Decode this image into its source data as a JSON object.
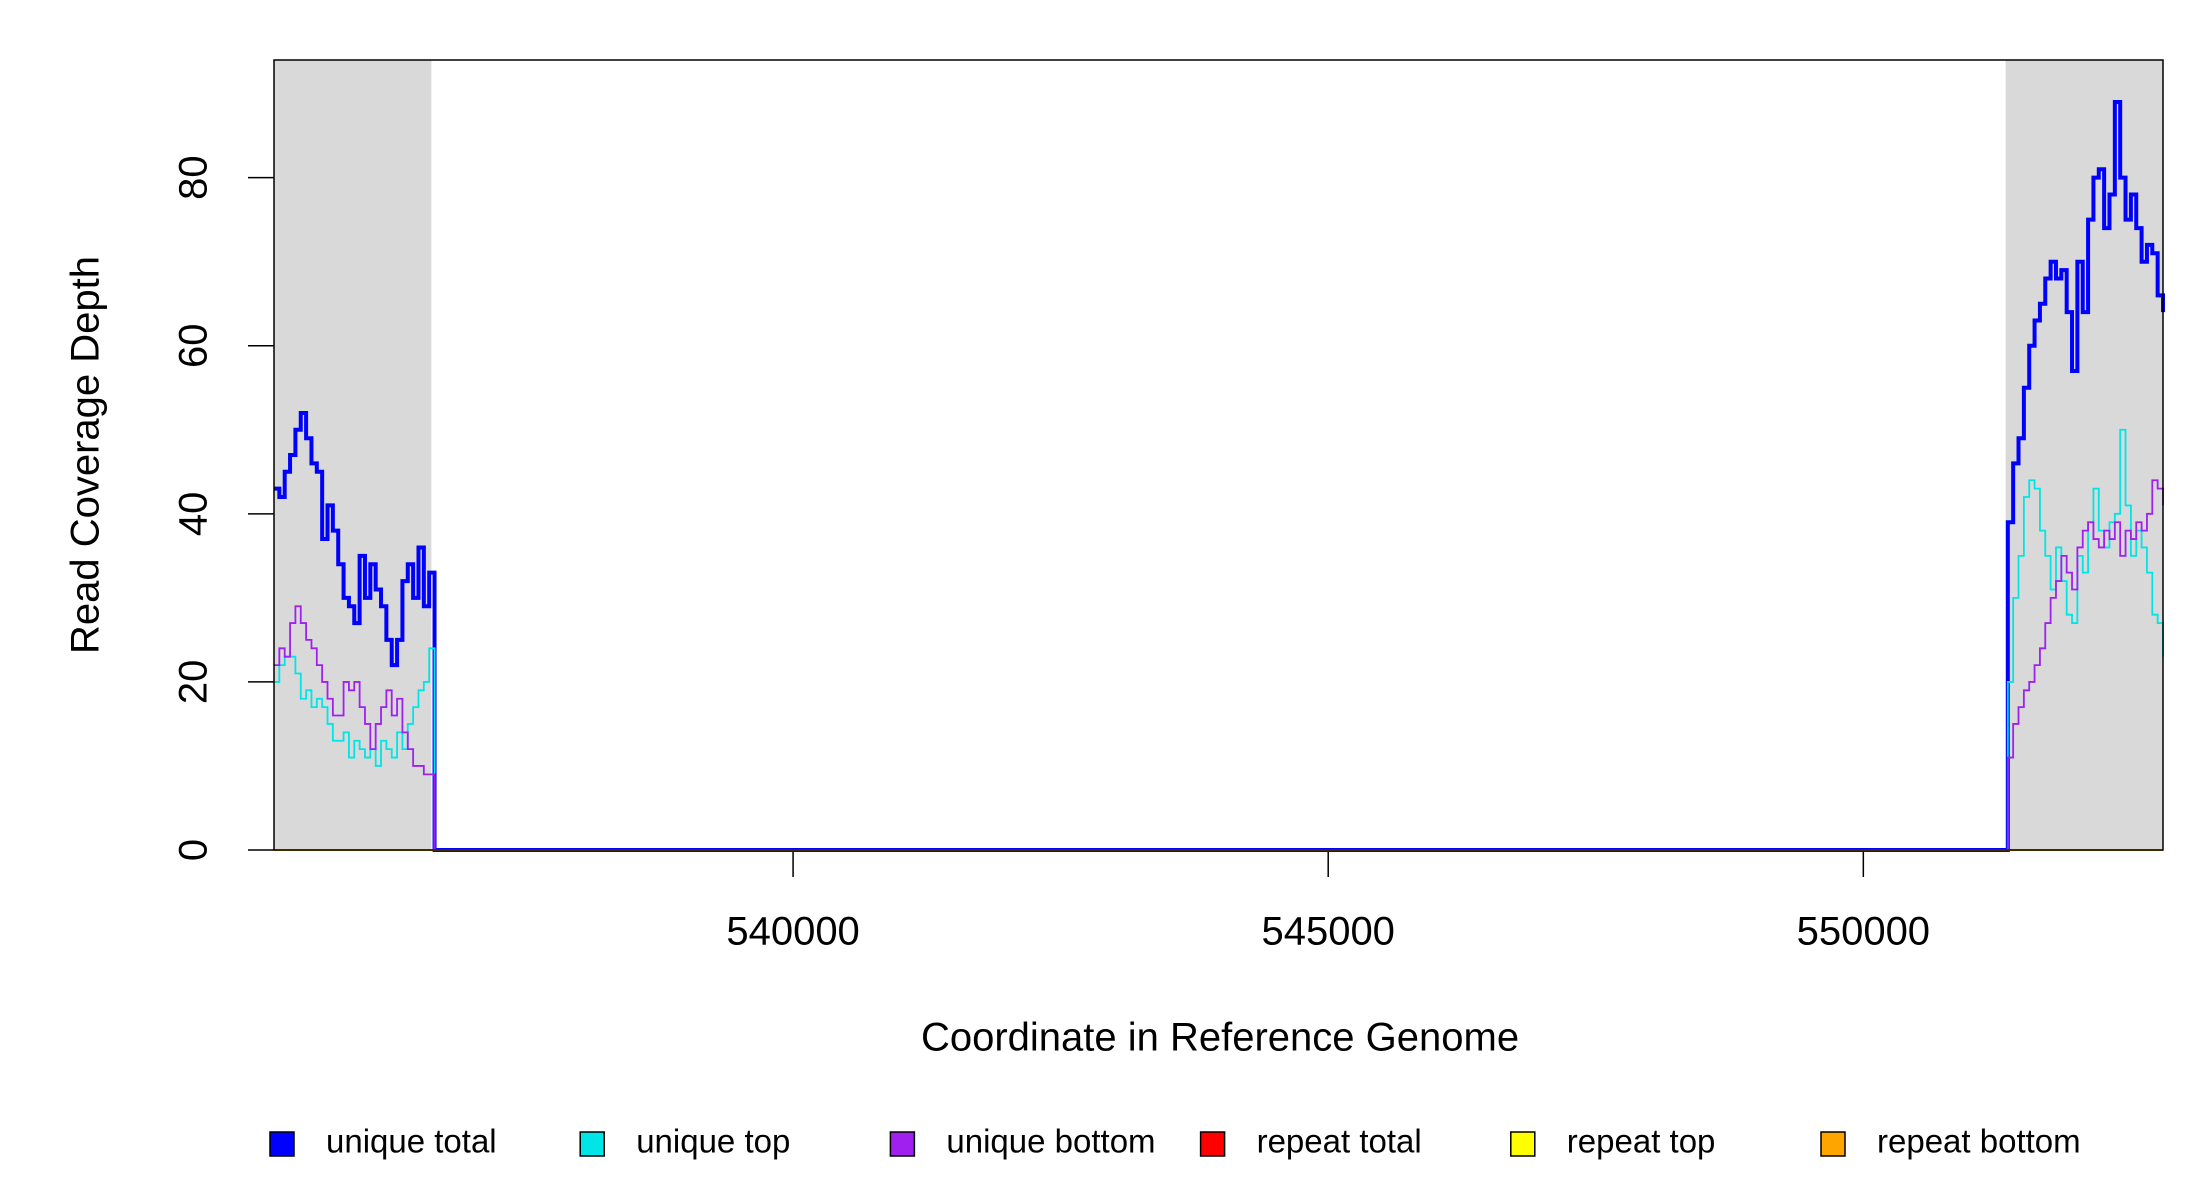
{
  "chart_data": {
    "type": "step",
    "x_label": "Coordinate in Reference Genome",
    "y_label": "Read Coverage Depth",
    "x": [
      535150,
      535200,
      535250,
      535300,
      535350,
      535400,
      535450,
      535500,
      535550,
      535600,
      535650,
      535700,
      535750,
      535800,
      535850,
      535900,
      535950,
      536000,
      536050,
      536100,
      536150,
      536200,
      536250,
      536300,
      536350,
      536400,
      536450,
      536500,
      536550,
      536600,
      536650,
      551300,
      551350,
      551400,
      551450,
      551500,
      551550,
      551600,
      551650,
      551700,
      551750,
      551800,
      551850,
      551900,
      551950,
      552000,
      552050,
      552100,
      552150,
      552200,
      552250,
      552300,
      552350,
      552400,
      552450,
      552500,
      552550,
      552600,
      552650,
      552700,
      552750,
      552800
    ],
    "series": [
      {
        "name": "unique total",
        "color": "#0000ff",
        "values": [
          43,
          42,
          45,
          47,
          50,
          52,
          49,
          46,
          45,
          37,
          41,
          38,
          34,
          30,
          29,
          27,
          35,
          30,
          34,
          31,
          29,
          25,
          22,
          25,
          32,
          34,
          30,
          36,
          29,
          33,
          0,
          0,
          39,
          46,
          49,
          55,
          60,
          63,
          65,
          68,
          70,
          68,
          69,
          64,
          57,
          70,
          64,
          75,
          80,
          81,
          74,
          78,
          89,
          80,
          75,
          78,
          74,
          70,
          72,
          71,
          66,
          64
        ]
      },
      {
        "name": "unique top",
        "color": "#00e5e5",
        "values": [
          20,
          22,
          23,
          23,
          21,
          18,
          19,
          17,
          18,
          17,
          15,
          13,
          13,
          14,
          11,
          13,
          12,
          11,
          12,
          10,
          13,
          12,
          11,
          14,
          12,
          15,
          17,
          19,
          20,
          24,
          0,
          0,
          20,
          30,
          35,
          42,
          44,
          43,
          38,
          35,
          31,
          36,
          32,
          28,
          27,
          35,
          33,
          39,
          43,
          38,
          36,
          39,
          40,
          50,
          41,
          35,
          38,
          36,
          33,
          28,
          27,
          23
        ]
      },
      {
        "name": "unique bottom",
        "color": "#a020f0",
        "values": [
          22,
          24,
          23,
          27,
          29,
          27,
          25,
          24,
          22,
          20,
          18,
          16,
          16,
          20,
          19,
          20,
          17,
          15,
          12,
          15,
          17,
          19,
          16,
          18,
          14,
          12,
          10,
          10,
          9,
          9,
          0,
          0,
          11,
          15,
          17,
          19,
          20,
          22,
          24,
          27,
          30,
          32,
          35,
          33,
          31,
          36,
          38,
          39,
          37,
          36,
          38,
          37,
          39,
          35,
          38,
          37,
          39,
          38,
          40,
          44,
          43,
          41
        ]
      },
      {
        "name": "repeat total",
        "color": "#ff0000",
        "values": [
          0,
          0,
          0,
          0,
          0,
          0,
          0,
          0,
          0,
          0,
          0,
          0,
          0,
          0,
          0,
          0,
          0,
          0,
          0,
          0,
          0,
          0,
          0,
          0,
          0,
          0,
          0,
          0,
          0,
          0,
          0,
          0,
          0,
          0,
          0,
          0,
          0,
          0,
          0,
          0,
          0,
          0,
          0,
          0,
          0,
          0,
          0,
          0,
          0,
          0,
          0,
          0,
          0,
          0,
          0,
          0,
          0,
          0,
          0,
          0,
          0,
          0
        ]
      },
      {
        "name": "repeat top",
        "color": "#ffff00",
        "values": [
          0,
          0,
          0,
          0,
          0,
          0,
          0,
          0,
          0,
          0,
          0,
          0,
          0,
          0,
          0,
          0,
          0,
          0,
          0,
          0,
          0,
          0,
          0,
          0,
          0,
          0,
          0,
          0,
          0,
          0,
          0,
          0,
          0,
          0,
          0,
          0,
          0,
          0,
          0,
          0,
          0,
          0,
          0,
          0,
          0,
          0,
          0,
          0,
          0,
          0,
          0,
          0,
          0,
          0,
          0,
          0,
          0,
          0,
          0,
          0,
          0,
          0
        ]
      },
      {
        "name": "repeat bottom",
        "color": "#ffa500",
        "values": [
          0,
          0,
          0,
          0,
          0,
          0,
          0,
          0,
          0,
          0,
          0,
          0,
          0,
          0,
          0,
          0,
          0,
          0,
          0,
          0,
          0,
          0,
          0,
          0,
          0,
          0,
          0,
          0,
          0,
          0,
          0,
          0,
          0,
          0,
          0,
          0,
          0,
          0,
          0,
          0,
          0,
          0,
          0,
          0,
          0,
          0,
          0,
          0,
          0,
          0,
          0,
          0,
          0,
          0,
          0,
          0,
          0,
          0,
          0,
          0,
          0,
          0
        ]
      }
    ],
    "shaded_regions": [
      [
        535150,
        536620
      ],
      [
        551330,
        552800
      ]
    ],
    "shade_color": "#d9d9d9",
    "xlim": [
      535150,
      552800
    ],
    "xticks": [
      540000,
      545000,
      550000
    ],
    "ylim": [
      0,
      94
    ],
    "yticks": [
      0,
      20,
      40,
      60,
      80
    ],
    "legend": "bottom"
  }
}
